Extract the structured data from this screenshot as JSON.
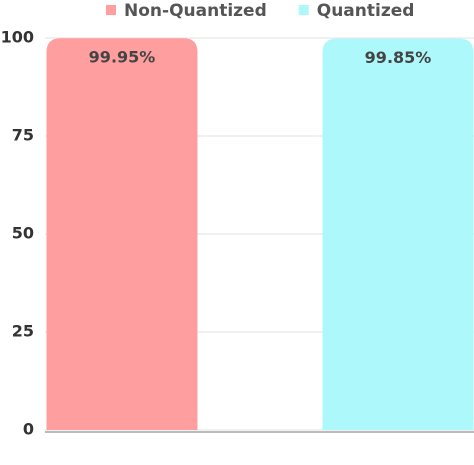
{
  "chart_data": {
    "type": "bar",
    "categories": [
      null,
      null
    ],
    "series": [
      {
        "name": "Non-Quantized",
        "color": "#ff9e9e",
        "values": [
          99.95,
          null
        ],
        "value_labels": [
          "99.95%",
          null
        ]
      },
      {
        "name": "Quantized",
        "color": "#adf8fb",
        "values": [
          null,
          99.85
        ],
        "value_labels": [
          null,
          "99.85%"
        ]
      }
    ],
    "ylim": [
      0,
      100
    ],
    "yticks": [
      0,
      25,
      50,
      75,
      100
    ],
    "grid": true,
    "legend": "top"
  }
}
